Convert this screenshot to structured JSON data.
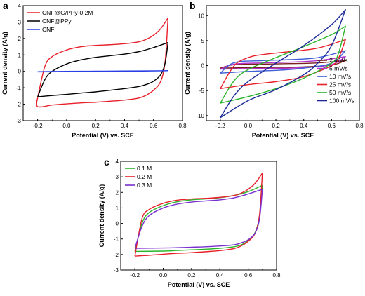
{
  "chart_data": [
    {
      "panel": "a",
      "type": "line",
      "xlabel": "Potential (V) vs. SCE",
      "ylabel": "Current density (A/g)",
      "xlim": [
        -0.3,
        0.8
      ],
      "ylim": [
        -3,
        4
      ],
      "xticks": [
        "-0.2",
        "0.0",
        "0.2",
        "0.4",
        "0.6",
        "0.8"
      ],
      "yticks": [
        "-3",
        "-2",
        "-1",
        "0",
        "1",
        "2",
        "3",
        "4"
      ],
      "legend_position": "top-left",
      "series": [
        {
          "name": "CNF@G/PPy-0.2M",
          "color": "#e8202a",
          "upper": [
            [
              -0.2,
              -1.6
            ],
            [
              -0.15,
              0.3
            ],
            [
              -0.1,
              0.9
            ],
            [
              0.0,
              1.3
            ],
            [
              0.1,
              1.5
            ],
            [
              0.2,
              1.58
            ],
            [
              0.3,
              1.62
            ],
            [
              0.4,
              1.68
            ],
            [
              0.5,
              1.8
            ],
            [
              0.55,
              1.95
            ],
            [
              0.6,
              2.2
            ],
            [
              0.65,
              2.6
            ],
            [
              0.7,
              3.25
            ]
          ],
          "lower": [
            [
              0.7,
              3.25
            ],
            [
              0.68,
              0.6
            ],
            [
              0.65,
              -0.6
            ],
            [
              0.6,
              -1.15
            ],
            [
              0.55,
              -1.45
            ],
            [
              0.5,
              -1.62
            ],
            [
              0.4,
              -1.75
            ],
            [
              0.3,
              -1.82
            ],
            [
              0.2,
              -1.88
            ],
            [
              0.1,
              -1.92
            ],
            [
              0.0,
              -1.98
            ],
            [
              -0.1,
              -2.05
            ],
            [
              -0.2,
              -2.15
            ],
            [
              -0.2,
              -1.6
            ]
          ]
        },
        {
          "name": "CNF@PPy",
          "color": "#000000",
          "upper": [
            [
              -0.2,
              -1.55
            ],
            [
              -0.15,
              -0.5
            ],
            [
              -0.1,
              0.0
            ],
            [
              0.0,
              0.45
            ],
            [
              0.1,
              0.7
            ],
            [
              0.2,
              0.85
            ],
            [
              0.3,
              0.95
            ],
            [
              0.4,
              1.05
            ],
            [
              0.5,
              1.2
            ],
            [
              0.6,
              1.45
            ],
            [
              0.7,
              1.75
            ]
          ],
          "lower": [
            [
              0.7,
              1.75
            ],
            [
              0.68,
              0.5
            ],
            [
              0.65,
              -0.2
            ],
            [
              0.6,
              -0.6
            ],
            [
              0.55,
              -0.8
            ],
            [
              0.5,
              -0.92
            ],
            [
              0.4,
              -1.05
            ],
            [
              0.3,
              -1.15
            ],
            [
              0.2,
              -1.25
            ],
            [
              0.1,
              -1.32
            ],
            [
              0.0,
              -1.4
            ],
            [
              -0.1,
              -1.47
            ],
            [
              -0.2,
              -1.55
            ]
          ]
        },
        {
          "name": "CNF",
          "color": "#2a3ee6",
          "upper": [
            [
              -0.2,
              -0.02
            ],
            [
              0.0,
              0.0
            ],
            [
              0.2,
              0.01
            ],
            [
              0.4,
              0.02
            ],
            [
              0.7,
              0.04
            ]
          ],
          "lower": [
            [
              0.7,
              0.04
            ],
            [
              0.4,
              0.0
            ],
            [
              0.2,
              -0.01
            ],
            [
              0.0,
              -0.02
            ],
            [
              -0.2,
              -0.03
            ]
          ]
        }
      ]
    },
    {
      "panel": "b",
      "type": "line",
      "xlabel": "Potential (V) vs. SCE",
      "ylabel": "Current density (A/g)",
      "xlim": [
        -0.3,
        0.8
      ],
      "ylim": [
        -11,
        12
      ],
      "xticks": [
        "-0.2",
        "0.0",
        "0.2",
        "0.4",
        "0.6",
        "0.8"
      ],
      "yticks": [
        "-10",
        "-5",
        "0",
        "5",
        "10"
      ],
      "legend_position": "bottom-right",
      "series": [
        {
          "name": "2 mV/s",
          "color": "#7a1e1e",
          "upper": [
            [
              -0.2,
              -0.5
            ],
            [
              -0.1,
              0.2
            ],
            [
              0.1,
              0.3
            ],
            [
              0.3,
              0.4
            ],
            [
              0.5,
              0.55
            ],
            [
              0.7,
              1.0
            ]
          ],
          "lower": [
            [
              0.7,
              1.0
            ],
            [
              0.6,
              0.1
            ],
            [
              0.4,
              -0.25
            ],
            [
              0.2,
              -0.35
            ],
            [
              0.0,
              -0.4
            ],
            [
              -0.2,
              -0.5
            ]
          ]
        },
        {
          "name": "5 mV/s",
          "color": "#b532cf",
          "upper": [
            [
              -0.2,
              -0.7
            ],
            [
              -0.1,
              0.3
            ],
            [
              0.1,
              0.55
            ],
            [
              0.3,
              0.7
            ],
            [
              0.5,
              1.0
            ],
            [
              0.7,
              1.8
            ]
          ],
          "lower": [
            [
              0.7,
              1.8
            ],
            [
              0.6,
              0.2
            ],
            [
              0.4,
              -0.4
            ],
            [
              0.2,
              -0.55
            ],
            [
              0.0,
              -0.6
            ],
            [
              -0.2,
              -0.7
            ]
          ]
        },
        {
          "name": "10 mV/s",
          "color": "#3f5fd8",
          "upper": [
            [
              -0.2,
              -1.5
            ],
            [
              -0.1,
              0.6
            ],
            [
              0.1,
              1.0
            ],
            [
              0.3,
              1.2
            ],
            [
              0.5,
              1.6
            ],
            [
              0.7,
              3.0
            ]
          ],
          "lower": [
            [
              0.7,
              3.0
            ],
            [
              0.6,
              0.5
            ],
            [
              0.4,
              -0.5
            ],
            [
              0.2,
              -0.95
            ],
            [
              0.0,
              -1.15
            ],
            [
              -0.2,
              -1.5
            ]
          ]
        },
        {
          "name": "25 mV/s",
          "color": "#e8202a",
          "upper": [
            [
              -0.2,
              -4.6
            ],
            [
              -0.1,
              0.0
            ],
            [
              0.0,
              1.6
            ],
            [
              0.1,
              2.2
            ],
            [
              0.3,
              2.8
            ],
            [
              0.5,
              3.5
            ],
            [
              0.7,
              5.2
            ]
          ],
          "lower": [
            [
              0.7,
              5.2
            ],
            [
              0.65,
              1.5
            ],
            [
              0.6,
              0.0
            ],
            [
              0.4,
              -2.2
            ],
            [
              0.2,
              -3.2
            ],
            [
              0.0,
              -3.8
            ],
            [
              -0.2,
              -4.6
            ]
          ]
        },
        {
          "name": "50 mV/s",
          "color": "#2bb52b",
          "upper": [
            [
              -0.2,
              -7.5
            ],
            [
              -0.1,
              -3.0
            ],
            [
              0.0,
              -0.8
            ],
            [
              0.2,
              1.6
            ],
            [
              0.4,
              3.8
            ],
            [
              0.6,
              6.2
            ],
            [
              0.7,
              7.9
            ]
          ],
          "lower": [
            [
              0.7,
              7.9
            ],
            [
              0.65,
              2.5
            ],
            [
              0.6,
              0.5
            ],
            [
              0.4,
              -2.5
            ],
            [
              0.2,
              -4.6
            ],
            [
              0.0,
              -6.2
            ],
            [
              -0.2,
              -7.5
            ]
          ]
        },
        {
          "name": "100 mV/s",
          "color": "#1a2a9a",
          "upper": [
            [
              -0.2,
              -10.4
            ],
            [
              -0.1,
              -6.0
            ],
            [
              0.0,
              -3.2
            ],
            [
              0.2,
              0.5
            ],
            [
              0.4,
              4.0
            ],
            [
              0.6,
              8.2
            ],
            [
              0.7,
              11.2
            ]
          ],
          "lower": [
            [
              0.7,
              11.2
            ],
            [
              0.6,
              4.0
            ],
            [
              0.5,
              0.5
            ],
            [
              0.4,
              -1.8
            ],
            [
              0.2,
              -4.8
            ],
            [
              0.0,
              -7.0
            ],
            [
              -0.2,
              -10.4
            ]
          ]
        }
      ]
    },
    {
      "panel": "c",
      "type": "line",
      "xlabel": "Potential (V) vs. SCE",
      "ylabel": "Current density (A/g)",
      "xlim": [
        -0.3,
        0.8
      ],
      "ylim": [
        -3,
        4
      ],
      "xticks": [
        "-0.2",
        "0.0",
        "0.2",
        "0.4",
        "0.6",
        "0.8"
      ],
      "yticks": [
        "-3",
        "-2",
        "-1",
        "0",
        "1",
        "2",
        "3",
        "4"
      ],
      "legend_position": "top-left",
      "series": [
        {
          "name": "0.1 M",
          "color": "#2bb52b",
          "upper": [
            [
              -0.2,
              -1.8
            ],
            [
              -0.15,
              0.0
            ],
            [
              -0.1,
              0.7
            ],
            [
              0.0,
              1.15
            ],
            [
              0.1,
              1.4
            ],
            [
              0.2,
              1.52
            ],
            [
              0.3,
              1.58
            ],
            [
              0.4,
              1.66
            ],
            [
              0.5,
              1.8
            ],
            [
              0.6,
              2.05
            ],
            [
              0.7,
              2.45
            ]
          ],
          "lower": [
            [
              0.7,
              2.45
            ],
            [
              0.68,
              0.5
            ],
            [
              0.65,
              -0.55
            ],
            [
              0.6,
              -1.1
            ],
            [
              0.55,
              -1.38
            ],
            [
              0.5,
              -1.5
            ],
            [
              0.4,
              -1.6
            ],
            [
              0.3,
              -1.66
            ],
            [
              0.2,
              -1.7
            ],
            [
              0.1,
              -1.74
            ],
            [
              0.0,
              -1.78
            ],
            [
              -0.2,
              -1.8
            ]
          ]
        },
        {
          "name": "0.2 M",
          "color": "#e8202a",
          "upper": [
            [
              -0.2,
              -2.1
            ],
            [
              -0.15,
              0.3
            ],
            [
              -0.1,
              0.9
            ],
            [
              0.0,
              1.3
            ],
            [
              0.1,
              1.5
            ],
            [
              0.2,
              1.58
            ],
            [
              0.3,
              1.62
            ],
            [
              0.4,
              1.68
            ],
            [
              0.5,
              1.8
            ],
            [
              0.55,
              1.95
            ],
            [
              0.6,
              2.2
            ],
            [
              0.65,
              2.6
            ],
            [
              0.7,
              3.25
            ]
          ],
          "lower": [
            [
              0.7,
              3.25
            ],
            [
              0.68,
              0.6
            ],
            [
              0.65,
              -0.6
            ],
            [
              0.6,
              -1.15
            ],
            [
              0.55,
              -1.45
            ],
            [
              0.5,
              -1.62
            ],
            [
              0.4,
              -1.75
            ],
            [
              0.3,
              -1.82
            ],
            [
              0.2,
              -1.88
            ],
            [
              0.1,
              -1.92
            ],
            [
              0.0,
              -1.98
            ],
            [
              -0.1,
              -2.05
            ],
            [
              -0.2,
              -2.1
            ]
          ]
        },
        {
          "name": "0.3 M",
          "color": "#7a2fcf",
          "upper": [
            [
              -0.2,
              -1.6
            ],
            [
              -0.15,
              -0.2
            ],
            [
              -0.1,
              0.5
            ],
            [
              0.0,
              1.0
            ],
            [
              0.1,
              1.25
            ],
            [
              0.2,
              1.38
            ],
            [
              0.3,
              1.45
            ],
            [
              0.4,
              1.52
            ],
            [
              0.5,
              1.65
            ],
            [
              0.6,
              1.9
            ],
            [
              0.7,
              2.2
            ]
          ],
          "lower": [
            [
              0.7,
              2.2
            ],
            [
              0.68,
              0.3
            ],
            [
              0.65,
              -0.6
            ],
            [
              0.6,
              -1.05
            ],
            [
              0.55,
              -1.25
            ],
            [
              0.5,
              -1.38
            ],
            [
              0.4,
              -1.45
            ],
            [
              0.3,
              -1.5
            ],
            [
              0.2,
              -1.53
            ],
            [
              0.1,
              -1.56
            ],
            [
              0.0,
              -1.58
            ],
            [
              -0.2,
              -1.6
            ]
          ]
        }
      ]
    }
  ]
}
